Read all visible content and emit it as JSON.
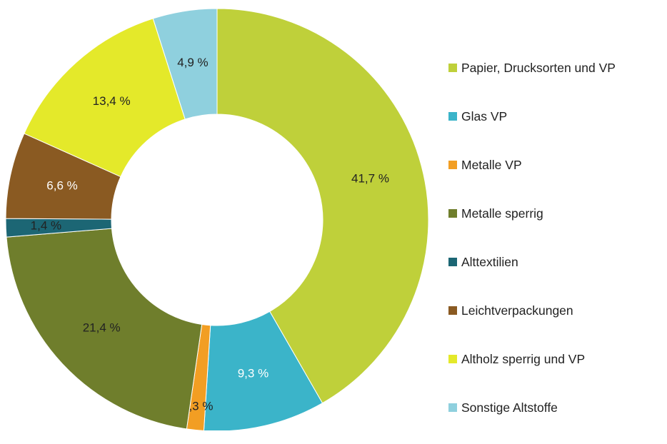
{
  "chart_data": {
    "type": "pie",
    "donut": true,
    "title": "",
    "legend_position": "right",
    "start_angle_deg": 0,
    "direction": "clockwise",
    "slices": [
      {
        "name": "Papier, Drucksorten und VP",
        "value": 41.7,
        "label": "41,7 %",
        "color": "#bfd03a",
        "label_color": "#222222"
      },
      {
        "name": "Glas VP",
        "value": 9.3,
        "label": "9,3 %",
        "color": "#3bb4c9",
        "label_color": "#ffffff"
      },
      {
        "name": "Metalle VP",
        "value": 1.3,
        "label": "1,3 %",
        "color": "#f29e23",
        "label_color": "#222222"
      },
      {
        "name": "Metalle sperrig",
        "value": 21.4,
        "label": "21,4 %",
        "color": "#6f7e2c",
        "label_color": "#222222"
      },
      {
        "name": "Alttextilien",
        "value": 1.4,
        "label": "1,4 %",
        "color": "#1c6674",
        "label_color": "#222222"
      },
      {
        "name": "Leichtverpackungen",
        "value": 6.6,
        "label": "6,6 %",
        "color": "#8a5a22",
        "label_color": "#ffffff"
      },
      {
        "name": "Altholz sperrig und VP",
        "value": 13.4,
        "label": "13,4 %",
        "color": "#e4e92a",
        "label_color": "#222222"
      },
      {
        "name": "Sonstige Altstoffe",
        "value": 4.9,
        "label": "4,9 %",
        "color": "#8fd0de",
        "label_color": "#222222"
      }
    ]
  }
}
